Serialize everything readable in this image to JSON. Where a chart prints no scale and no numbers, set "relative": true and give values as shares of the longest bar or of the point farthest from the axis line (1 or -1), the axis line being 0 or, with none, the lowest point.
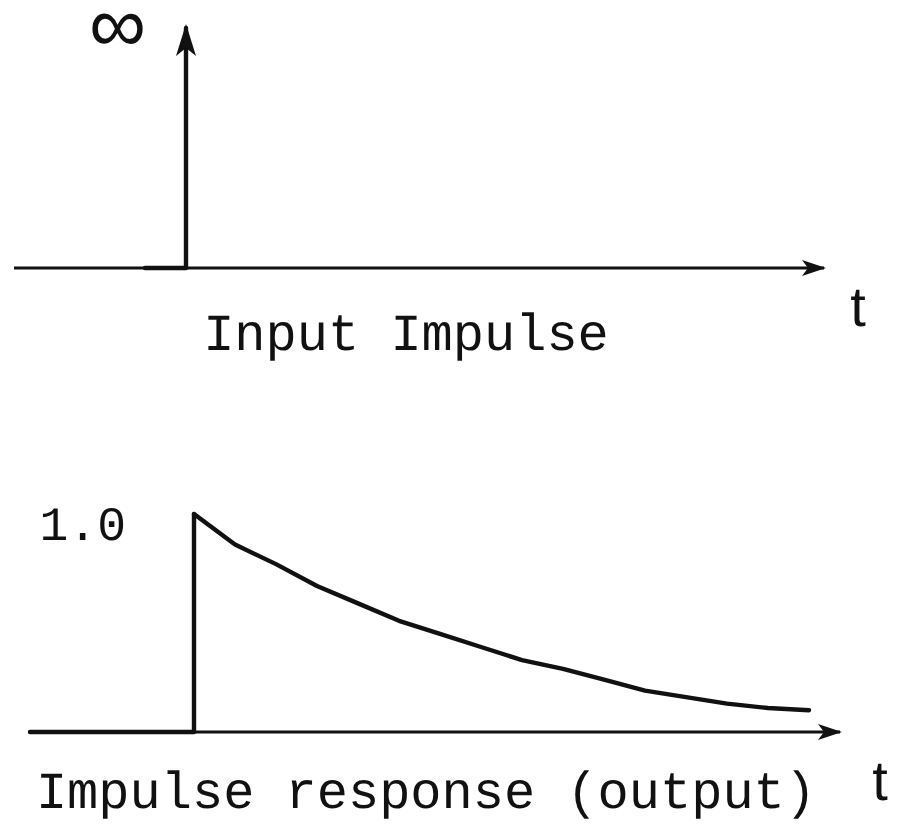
{
  "chart_data": [
    {
      "type": "step",
      "title": "Input Impulse",
      "xlabel": "t",
      "categories": [
        null,
        null,
        null,
        null,
        null,
        null,
        null,
        null,
        null,
        null,
        null,
        null,
        null,
        null,
        null,
        null,
        null,
        null,
        null,
        null
      ],
      "series": [
        {
          "color": "#111111",
          "values": [
            null,
            null,
            null,
            0,
            1,
            null,
            null,
            null,
            null,
            null,
            null,
            null,
            null,
            null,
            null,
            null,
            null,
            null,
            null,
            null
          ]
        }
      ],
      "relative": true,
      "annotations": [
        "∞"
      ]
    },
    {
      "type": "line",
      "title": "Impulse response (output)",
      "xlabel": "t",
      "categories": [
        null,
        null,
        null,
        null,
        null,
        null,
        null,
        null,
        null,
        null,
        null,
        null,
        null,
        null,
        null,
        null,
        null,
        null,
        null,
        null
      ],
      "series": [
        {
          "type": "step",
          "color": "#111111",
          "values": [
            0,
            0,
            0,
            0,
            1,
            null,
            null,
            null,
            null,
            null,
            null,
            null,
            null,
            null,
            null,
            null,
            null,
            null,
            null,
            null
          ]
        },
        {
          "color": "#111111",
          "values": [
            null,
            null,
            null,
            null,
            1,
            0.86,
            0.77,
            0.67,
            0.59,
            0.51,
            0.45,
            0.39,
            0.33,
            0.29,
            0.24,
            0.19,
            0.16,
            0.13,
            0.11,
            0.1
          ]
        }
      ],
      "relative": true,
      "annotations": [
        "1.0"
      ]
    }
  ]
}
